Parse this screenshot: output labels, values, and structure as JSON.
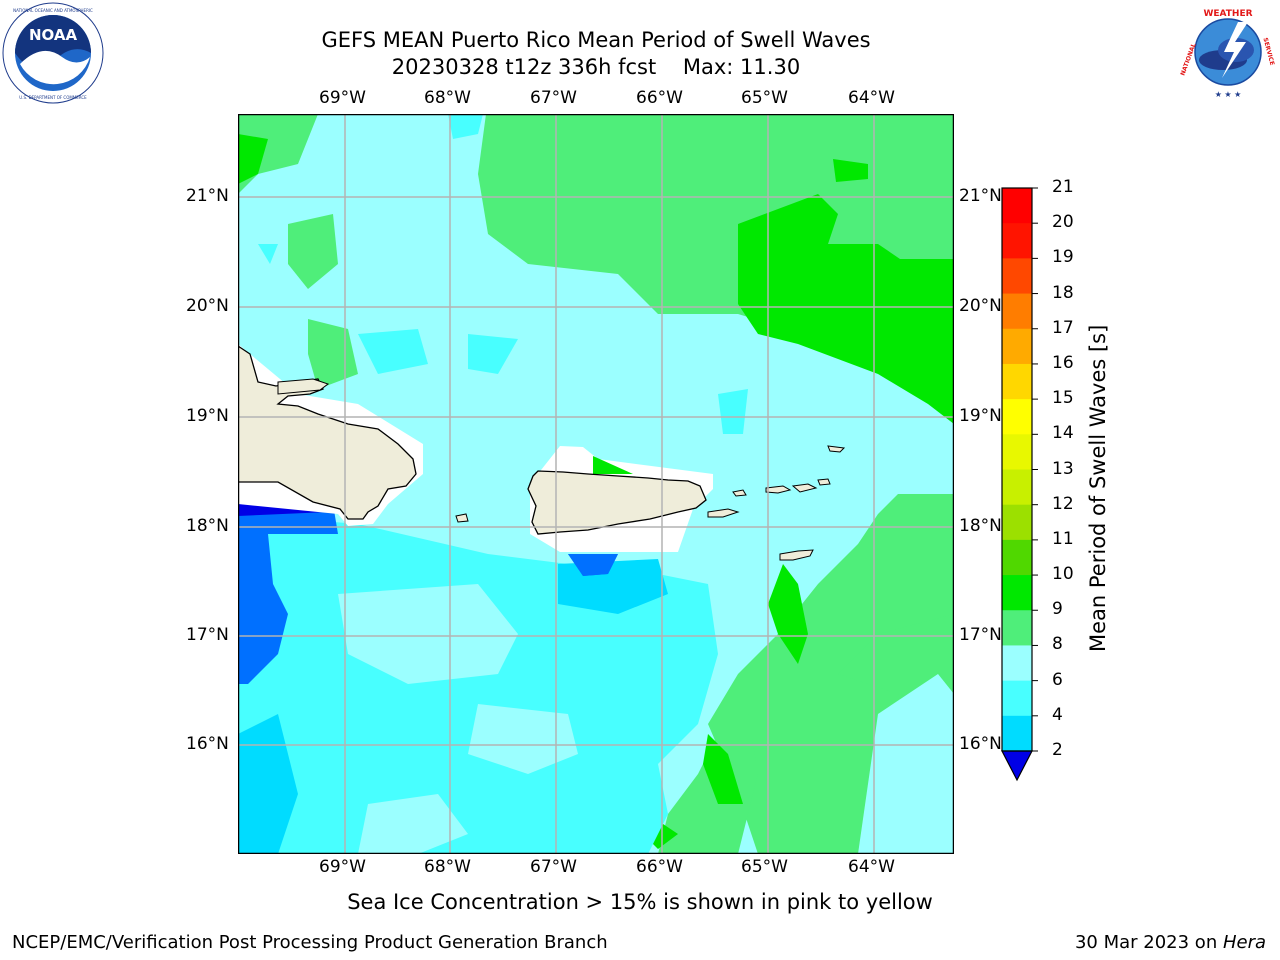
{
  "header": {
    "title_line1": "GEFS MEAN Puerto Rico Mean Period of Swell Waves",
    "title_line2": "20230328 t12z 336h fcst    Max: 11.30"
  },
  "logos": {
    "left": {
      "name": "noaa-logo",
      "text": "NOAA",
      "ring_text": "NATIONAL OCEANIC AND ATMOSPHERIC ADMINISTRATION · U.S. DEPARTMENT OF COMMERCE"
    },
    "right": {
      "name": "nws-logo",
      "ring_text": "NATIONAL WEATHER SERVICE"
    }
  },
  "map": {
    "lon_labels": [
      "69°W",
      "68°W",
      "67°W",
      "66°W",
      "65°W",
      "64°W"
    ],
    "lat_labels": [
      "21°N",
      "20°N",
      "19°N",
      "18°N",
      "17°N",
      "16°N"
    ],
    "gridlines": true
  },
  "colorbar": {
    "title": "Mean Period of Swell Waves [s]",
    "levels": [
      "2",
      "4",
      "6",
      "8",
      "9",
      "10",
      "11",
      "12",
      "13",
      "14",
      "15",
      "16",
      "17",
      "18",
      "19",
      "20",
      "21"
    ],
    "colors": [
      "#0000e6",
      "#0070ff",
      "#00dcff",
      "#48ffff",
      "#9bffff",
      "#4fee7a",
      "#00e800",
      "#50d800",
      "#9ce000",
      "#c8f000",
      "#e8f800",
      "#ffff00",
      "#ffd700",
      "#ffaa00",
      "#ff7d00",
      "#ff4800",
      "#ff1400",
      "#ff0000"
    ]
  },
  "palette": {
    "land": "#efedda",
    "missing": "#ffffff",
    "grid": "#b4b4b4"
  },
  "footer": {
    "caption": "Sea Ice Concentration > 15% is shown in pink to yellow",
    "left": "NCEP/EMC/Verification Post Processing Product Generation Branch",
    "right_prefix": "30 Mar 2023 on ",
    "right_host": "Hera"
  }
}
